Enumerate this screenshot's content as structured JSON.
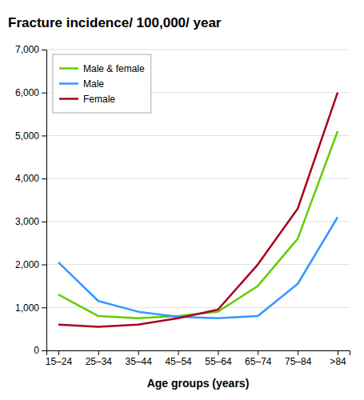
{
  "chart_data": {
    "type": "line",
    "title": "Fracture incidence/ 100,000/ year",
    "xlabel": "Age groups (years)",
    "categories": [
      "15–24",
      "25–34",
      "35–44",
      "45–54",
      "55–64",
      "65–74",
      "75–84",
      ">84"
    ],
    "series": [
      {
        "name": "Male & female",
        "color": "#66cc00",
        "values": [
          1300,
          800,
          750,
          800,
          900,
          1500,
          2600,
          5100
        ]
      },
      {
        "name": "Male",
        "color": "#3399ff",
        "values": [
          2050,
          1150,
          900,
          780,
          750,
          800,
          1550,
          3100
        ]
      },
      {
        "name": "Female",
        "color": "#aa0022",
        "values": [
          600,
          550,
          600,
          750,
          950,
          2000,
          3300,
          6000
        ]
      }
    ],
    "ylim": [
      0,
      7000
    ],
    "yticks": [
      0,
      {
        "value": 1000,
        "label": "1,000"
      },
      {
        "value": 2000,
        "label": "2,000"
      },
      {
        "value": 3000,
        "label": "3,000"
      },
      {
        "value": 4000,
        "label": "4,000"
      },
      {
        "value": 5000,
        "label": "5,000"
      },
      {
        "value": 6000,
        "label": "6,000"
      },
      {
        "value": 7000,
        "label": "7,000"
      }
    ],
    "grid": true,
    "legend": "upper-left"
  }
}
